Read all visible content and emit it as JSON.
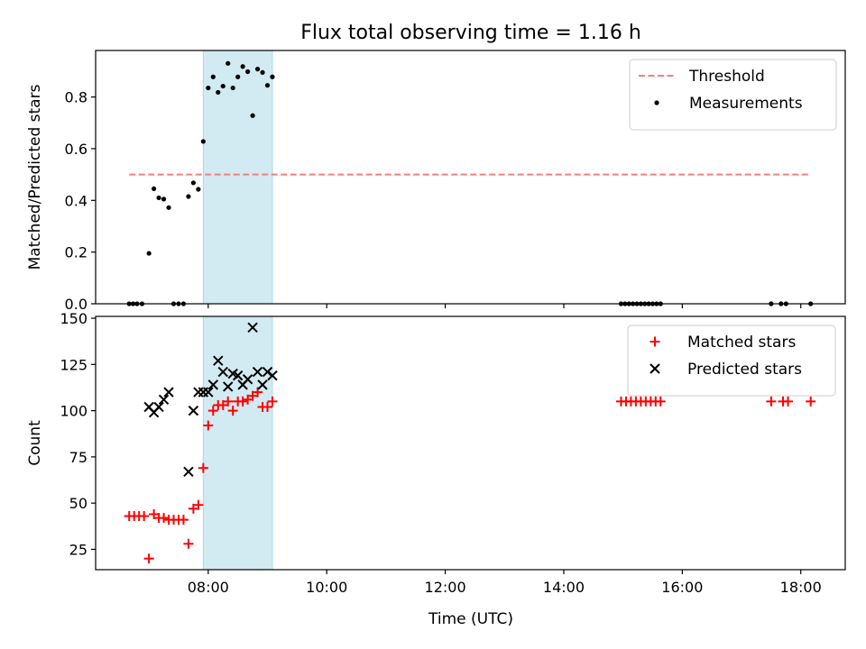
{
  "title": "Flux total observing time = 1.16 h",
  "xlabel": "Time (UTC)",
  "x_tick_labels": [
    "08:00",
    "10:00",
    "12:00",
    "14:00",
    "16:00",
    "18:00"
  ],
  "colors": {
    "threshold": "#f08080",
    "measurement": "#000000",
    "matched": "#ff0000",
    "predicted": "#000000",
    "span": "#add8e6"
  },
  "chart_data": [
    {
      "type": "scatter",
      "ylabel": "Matched/Predicted stars",
      "xlim": [
        "06:06",
        "18:45"
      ],
      "ylim": [
        0,
        0.98
      ],
      "y_ticks": [
        "0.0",
        "0.2",
        "0.4",
        "0.6",
        "0.8"
      ],
      "shaded_span": [
        "07:55",
        "09:05"
      ],
      "legend_position": "upper right",
      "threshold": {
        "name": "Threshold",
        "y": 0.5,
        "x_range": [
          "06:40",
          "18:08"
        ]
      },
      "series": [
        {
          "name": "Measurements",
          "points": [
            [
              "06:40",
              0
            ],
            [
              "06:44",
              0
            ],
            [
              "06:48",
              0
            ],
            [
              "06:53",
              0
            ],
            [
              "07:00",
              0.195
            ],
            [
              "07:05",
              0.445
            ],
            [
              "07:10",
              0.41
            ],
            [
              "07:15",
              0.405
            ],
            [
              "07:20",
              0.372
            ],
            [
              "07:25",
              0
            ],
            [
              "07:30",
              0
            ],
            [
              "07:35",
              0
            ],
            [
              "07:40",
              0.415
            ],
            [
              "07:45",
              0.468
            ],
            [
              "07:50",
              0.443
            ],
            [
              "07:55",
              0.628
            ],
            [
              "08:00",
              0.835
            ],
            [
              "08:05",
              0.878
            ],
            [
              "08:10",
              0.818
            ],
            [
              "08:15",
              0.842
            ],
            [
              "08:20",
              0.93
            ],
            [
              "08:25",
              0.835
            ],
            [
              "08:30",
              0.878
            ],
            [
              "08:35",
              0.918
            ],
            [
              "08:40",
              0.898
            ],
            [
              "08:45",
              0.728
            ],
            [
              "08:50",
              0.908
            ],
            [
              "08:55",
              0.895
            ],
            [
              "09:00",
              0.845
            ],
            [
              "09:05",
              0.878
            ],
            [
              "14:58",
              0
            ],
            [
              "15:02",
              0
            ],
            [
              "15:06",
              0
            ],
            [
              "15:10",
              0
            ],
            [
              "15:14",
              0
            ],
            [
              "15:18",
              0
            ],
            [
              "15:22",
              0
            ],
            [
              "15:26",
              0
            ],
            [
              "15:30",
              0
            ],
            [
              "15:34",
              0
            ],
            [
              "15:38",
              0
            ],
            [
              "17:30",
              0
            ],
            [
              "17:40",
              0
            ],
            [
              "17:45",
              0
            ],
            [
              "18:10",
              0
            ]
          ]
        }
      ]
    },
    {
      "type": "scatter",
      "ylabel": "Count",
      "xlabel": "Time (UTC)",
      "xlim": [
        "06:06",
        "18:45"
      ],
      "ylim": [
        14,
        151
      ],
      "y_ticks": [
        "25",
        "50",
        "75",
        "100",
        "125",
        "150"
      ],
      "shaded_span": [
        "07:55",
        "09:05"
      ],
      "legend_position": "upper right",
      "series": [
        {
          "name": "Matched stars",
          "marker": "+",
          "points": [
            [
              "06:40",
              43
            ],
            [
              "06:45",
              43
            ],
            [
              "06:50",
              43
            ],
            [
              "06:55",
              43
            ],
            [
              "07:00",
              20
            ],
            [
              "07:05",
              44
            ],
            [
              "07:10",
              42
            ],
            [
              "07:15",
              42
            ],
            [
              "07:20",
              41
            ],
            [
              "07:25",
              41
            ],
            [
              "07:30",
              41
            ],
            [
              "07:35",
              41
            ],
            [
              "07:40",
              28
            ],
            [
              "07:45",
              47
            ],
            [
              "07:50",
              49
            ],
            [
              "07:55",
              69
            ],
            [
              "08:00",
              92
            ],
            [
              "08:05",
              100
            ],
            [
              "08:10",
              103
            ],
            [
              "08:15",
              103
            ],
            [
              "08:20",
              105
            ],
            [
              "08:25",
              100
            ],
            [
              "08:30",
              105
            ],
            [
              "08:35",
              105
            ],
            [
              "08:40",
              106
            ],
            [
              "08:45",
              108
            ],
            [
              "08:50",
              110
            ],
            [
              "08:55",
              102
            ],
            [
              "09:00",
              102
            ],
            [
              "09:05",
              105
            ],
            [
              "14:58",
              105
            ],
            [
              "15:03",
              105
            ],
            [
              "15:08",
              105
            ],
            [
              "15:13",
              105
            ],
            [
              "15:18",
              105
            ],
            [
              "15:23",
              105
            ],
            [
              "15:28",
              105
            ],
            [
              "15:33",
              105
            ],
            [
              "15:38",
              105
            ],
            [
              "17:30",
              105
            ],
            [
              "17:42",
              105
            ],
            [
              "17:47",
              105
            ],
            [
              "18:10",
              105
            ]
          ]
        },
        {
          "name": "Predicted stars",
          "marker": "x",
          "points": [
            [
              "07:00",
              102
            ],
            [
              "07:05",
              99
            ],
            [
              "07:10",
              102
            ],
            [
              "07:15",
              106
            ],
            [
              "07:20",
              110
            ],
            [
              "07:40",
              67
            ],
            [
              "07:45",
              100
            ],
            [
              "07:50",
              110
            ],
            [
              "07:55",
              110
            ],
            [
              "08:00",
              110
            ],
            [
              "08:05",
              114
            ],
            [
              "08:10",
              127
            ],
            [
              "08:15",
              121
            ],
            [
              "08:20",
              113
            ],
            [
              "08:25",
              120
            ],
            [
              "08:30",
              119
            ],
            [
              "08:35",
              114
            ],
            [
              "08:40",
              117
            ],
            [
              "08:45",
              145
            ],
            [
              "08:50",
              121
            ],
            [
              "08:55",
              114
            ],
            [
              "09:00",
              121
            ],
            [
              "09:05",
              119
            ]
          ]
        }
      ]
    }
  ]
}
